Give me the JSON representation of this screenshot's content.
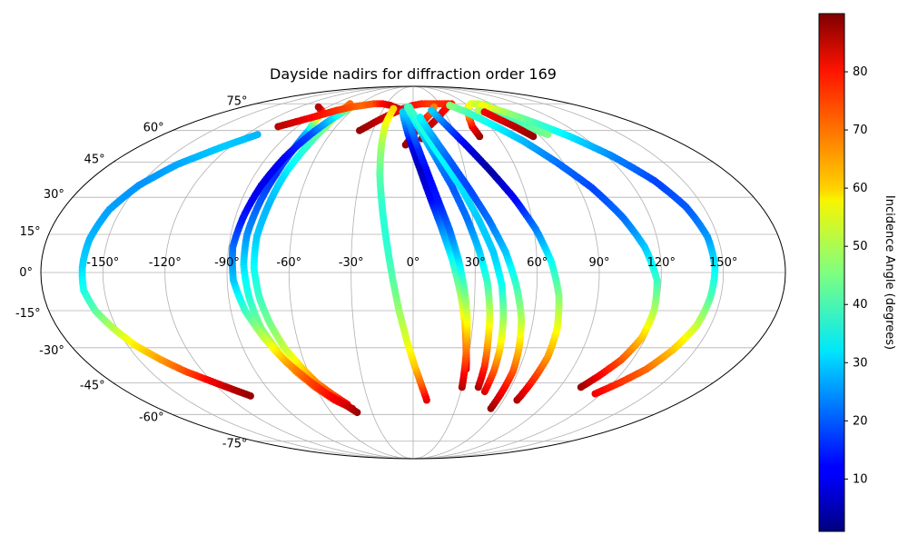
{
  "chart_data": {
    "type": "scatter",
    "projection": "mollweide",
    "title": "Dayside nadirs for diffraction order 169",
    "grid": true,
    "xticks": [
      "-150°",
      "-120°",
      "-90°",
      "-60°",
      "-30°",
      "0°",
      "30°",
      "60°",
      "90°",
      "120°",
      "150°"
    ],
    "xtick_values": [
      -150,
      -120,
      -90,
      -60,
      -30,
      0,
      30,
      60,
      90,
      120,
      150
    ],
    "yticks": [
      "75°",
      "60°",
      "45°",
      "30°",
      "15°",
      "0°",
      "-15°",
      "-30°",
      "-45°",
      "-60°",
      "-75°"
    ],
    "ytick_values": [
      75,
      60,
      45,
      30,
      15,
      0,
      -15,
      -30,
      -45,
      -60,
      -75
    ],
    "colorbar": {
      "label": "Incidence Angle (degrees)",
      "range": [
        1,
        90
      ],
      "ticks": [
        10,
        20,
        30,
        40,
        50,
        60,
        70,
        80
      ],
      "colormap": "jet"
    },
    "series": [
      {
        "points": [
          [
            -112,
            58,
            28
          ],
          [
            -125,
            52,
            30
          ],
          [
            -140,
            44,
            27
          ],
          [
            -150,
            35,
            25
          ],
          [
            -156,
            25,
            26
          ],
          [
            -159,
            13,
            28
          ],
          [
            -160,
            2,
            31
          ],
          [
            -160,
            -7,
            36
          ],
          [
            -157,
            -15,
            42
          ],
          [
            -152,
            -22,
            50
          ],
          [
            -146,
            -29,
            58
          ],
          [
            -138,
            -35,
            65
          ],
          [
            -130,
            -40,
            72
          ],
          [
            -121,
            -44,
            79
          ],
          [
            -112,
            -48,
            85
          ],
          [
            -105,
            -51,
            88
          ]
        ]
      },
      {
        "points": [
          [
            -45,
            -55,
            80
          ],
          [
            -52,
            -50,
            72
          ],
          [
            -58,
            -45,
            68
          ],
          [
            -63,
            -38,
            60
          ],
          [
            -68,
            -30,
            52
          ],
          [
            -72,
            -20,
            45
          ],
          [
            -75,
            -10,
            40
          ],
          [
            -77,
            2,
            35
          ],
          [
            -77,
            14,
            30
          ],
          [
            -75,
            27,
            28
          ],
          [
            -73,
            40,
            32
          ],
          [
            -70,
            52,
            38
          ],
          [
            -68,
            62,
            45
          ],
          [
            -69,
            70,
            60
          ],
          [
            -72,
            75,
            70
          ]
        ]
      },
      {
        "points": [
          [
            -43,
            -57,
            82
          ],
          [
            -52,
            -53,
            78
          ],
          [
            -60,
            -47,
            72
          ],
          [
            -67,
            -40,
            65
          ],
          [
            -72,
            -32,
            55
          ],
          [
            -77,
            -22,
            46
          ],
          [
            -80,
            -10,
            38
          ],
          [
            -82,
            3,
            32
          ],
          [
            -82,
            15,
            25
          ],
          [
            -80,
            28,
            20
          ],
          [
            -78,
            40,
            16
          ],
          [
            -77,
            51,
            20
          ],
          [
            -78,
            60,
            30
          ],
          [
            -83,
            67,
            55
          ],
          [
            -90,
            71,
            75
          ],
          [
            -100,
            73,
            85
          ]
        ]
      },
      {
        "points": [
          [
            -41,
            -59,
            88
          ],
          [
            -47,
            -55,
            83
          ],
          [
            -55,
            -50,
            78
          ],
          [
            -62,
            -44,
            73
          ],
          [
            -70,
            -36,
            65
          ],
          [
            -77,
            -26,
            52
          ],
          [
            -83,
            -15,
            40
          ],
          [
            -87,
            -3,
            30
          ],
          [
            -88,
            10,
            22
          ],
          [
            -86,
            22,
            14
          ],
          [
            -83,
            35,
            10
          ],
          [
            -79,
            47,
            12
          ],
          [
            -74,
            58,
            18
          ],
          [
            -69,
            67,
            32
          ],
          [
            -64,
            73,
            50
          ]
        ]
      },
      {
        "points": [
          [
            -105,
            62,
            85
          ],
          [
            -95,
            65,
            82
          ],
          [
            -85,
            68,
            78
          ],
          [
            -75,
            71,
            75
          ],
          [
            -65,
            73,
            72
          ],
          [
            -55,
            74,
            70
          ],
          [
            -45,
            75,
            72
          ],
          [
            -35,
            75,
            78
          ],
          [
            -25,
            74,
            82
          ],
          [
            -15,
            72,
            84
          ]
        ]
      },
      {
        "points": [
          [
            -40,
            60,
            88
          ],
          [
            -30,
            65,
            85
          ],
          [
            -20,
            69,
            82
          ],
          [
            -10,
            72,
            80
          ],
          [
            0,
            74,
            78
          ],
          [
            10,
            75,
            76
          ],
          [
            20,
            75,
            74
          ],
          [
            30,
            75,
            75
          ],
          [
            40,
            75,
            76
          ]
        ]
      },
      {
        "points": [
          [
            9,
            -53,
            82
          ],
          [
            5,
            -46,
            72
          ],
          [
            1,
            -38,
            62
          ],
          [
            -3,
            -28,
            55
          ],
          [
            -7,
            -15,
            48
          ],
          [
            -10,
            -2,
            42
          ],
          [
            -13,
            12,
            38
          ],
          [
            -16,
            26,
            38
          ],
          [
            -19,
            40,
            42
          ],
          [
            -21,
            53,
            48
          ],
          [
            -22,
            64,
            55
          ],
          [
            -20,
            72,
            60
          ]
        ]
      },
      {
        "points": [
          [
            -5,
            53,
            88
          ],
          [
            0,
            58,
            84
          ],
          [
            6,
            63,
            80
          ],
          [
            12,
            67,
            76
          ],
          [
            18,
            70,
            72
          ],
          [
            22,
            73,
            68
          ]
        ]
      },
      {
        "points": [
          [
            6,
            56,
            88
          ],
          [
            12,
            62,
            85
          ],
          [
            20,
            66,
            82
          ],
          [
            28,
            70,
            80
          ],
          [
            36,
            73,
            78
          ],
          [
            44,
            75,
            76
          ]
        ]
      },
      {
        "points": [
          [
            30,
            -39,
            84
          ],
          [
            28,
            -30,
            72
          ],
          [
            26,
            -20,
            60
          ],
          [
            23,
            -8,
            48
          ],
          [
            19,
            5,
            36
          ],
          [
            14,
            18,
            24
          ],
          [
            9,
            30,
            12
          ],
          [
            4,
            42,
            6
          ],
          [
            -1,
            53,
            10
          ],
          [
            -6,
            63,
            22
          ],
          [
            -10,
            70,
            30
          ]
        ]
      },
      {
        "points": [
          [
            30,
            -47,
            86
          ],
          [
            29,
            -38,
            76
          ],
          [
            28,
            -28,
            66
          ],
          [
            27,
            -18,
            55
          ],
          [
            25,
            -7,
            44
          ],
          [
            22,
            5,
            32
          ],
          [
            18,
            17,
            22
          ],
          [
            13,
            29,
            14
          ],
          [
            8,
            41,
            12
          ],
          [
            3,
            52,
            16
          ],
          [
            -2,
            62,
            24
          ],
          [
            -6,
            70,
            30
          ]
        ]
      },
      {
        "points": [
          [
            40,
            -47,
            86
          ],
          [
            40,
            -38,
            76
          ],
          [
            39,
            -28,
            64
          ],
          [
            38,
            -16,
            52
          ],
          [
            36,
            -4,
            40
          ],
          [
            32,
            9,
            30
          ],
          [
            27,
            22,
            22
          ],
          [
            21,
            35,
            20
          ],
          [
            14,
            47,
            24
          ],
          [
            7,
            58,
            30
          ],
          [
            0,
            67,
            35
          ],
          [
            -6,
            73,
            40
          ]
        ]
      },
      {
        "points": [
          [
            45,
            -49,
            82
          ],
          [
            46,
            -40,
            72
          ],
          [
            46,
            -30,
            60
          ],
          [
            45,
            -18,
            48
          ],
          [
            43,
            -5,
            36
          ],
          [
            39,
            8,
            30
          ],
          [
            33,
            21,
            30
          ],
          [
            26,
            34,
            32
          ],
          [
            18,
            46,
            34
          ],
          [
            10,
            57,
            36
          ],
          [
            2,
            67,
            38
          ],
          [
            -4,
            73,
            40
          ]
        ]
      },
      {
        "points": [
          [
            55,
            -57,
            88
          ],
          [
            56,
            -49,
            80
          ],
          [
            57,
            -40,
            72
          ],
          [
            56,
            -30,
            62
          ],
          [
            54,
            -18,
            50
          ],
          [
            50,
            -5,
            40
          ],
          [
            45,
            8,
            30
          ],
          [
            38,
            21,
            22
          ],
          [
            30,
            34,
            18
          ],
          [
            22,
            46,
            20
          ],
          [
            14,
            57,
            26
          ],
          [
            6,
            67,
            34
          ]
        ]
      },
      {
        "points": [
          [
            69,
            -53,
            86
          ],
          [
            71,
            -44,
            76
          ],
          [
            73,
            -34,
            66
          ],
          [
            73,
            -22,
            56
          ],
          [
            71,
            -9,
            46
          ],
          [
            67,
            4,
            36
          ],
          [
            61,
            17,
            24
          ],
          [
            53,
            30,
            12
          ],
          [
            44,
            42,
            4
          ],
          [
            35,
            53,
            10
          ],
          [
            26,
            63,
            20
          ],
          [
            18,
            71,
            30
          ]
        ]
      },
      {
        "points": [
          [
            47,
            57,
            88
          ],
          [
            46,
            62,
            80
          ],
          [
            48,
            66,
            72
          ],
          [
            52,
            70,
            64
          ],
          [
            58,
            73,
            58
          ],
          [
            66,
            75,
            55
          ],
          [
            74,
            75,
            52
          ],
          [
            82,
            74,
            48
          ]
        ]
      },
      {
        "points": [
          [
            103,
            -47,
            88
          ],
          [
            108,
            -42,
            80
          ],
          [
            114,
            -35,
            72
          ],
          [
            118,
            -26,
            62
          ],
          [
            119,
            -15,
            50
          ],
          [
            118,
            -3,
            40
          ],
          [
            113,
            10,
            30
          ],
          [
            106,
            22,
            22
          ],
          [
            97,
            34,
            18
          ],
          [
            86,
            45,
            22
          ],
          [
            75,
            55,
            28
          ],
          [
            63,
            63,
            34
          ],
          [
            51,
            70,
            40
          ],
          [
            40,
            74,
            46
          ]
        ]
      },
      {
        "points": [
          [
            116,
            -50,
            80
          ],
          [
            124,
            -45,
            75
          ],
          [
            132,
            -39,
            70
          ],
          [
            138,
            -31,
            62
          ],
          [
            143,
            -21,
            52
          ],
          [
            145,
            -10,
            42
          ],
          [
            146,
            2,
            34
          ],
          [
            145,
            14,
            26
          ],
          [
            141,
            26,
            20
          ],
          [
            134,
            37,
            18
          ],
          [
            123,
            48,
            24
          ],
          [
            111,
            57,
            32
          ],
          [
            99,
            64,
            40
          ],
          [
            87,
            70,
            48
          ],
          [
            75,
            74,
            56
          ]
        ]
      },
      {
        "points": [
          [
            97,
            58,
            45
          ],
          [
            88,
            62,
            42
          ],
          [
            80,
            65,
            40
          ],
          [
            72,
            68,
            42
          ],
          [
            64,
            71,
            50
          ]
        ]
      },
      {
        "points": [
          [
            85,
            57,
            88
          ],
          [
            79,
            62,
            85
          ],
          [
            73,
            66,
            82
          ],
          [
            68,
            70,
            80
          ]
        ]
      }
    ]
  }
}
